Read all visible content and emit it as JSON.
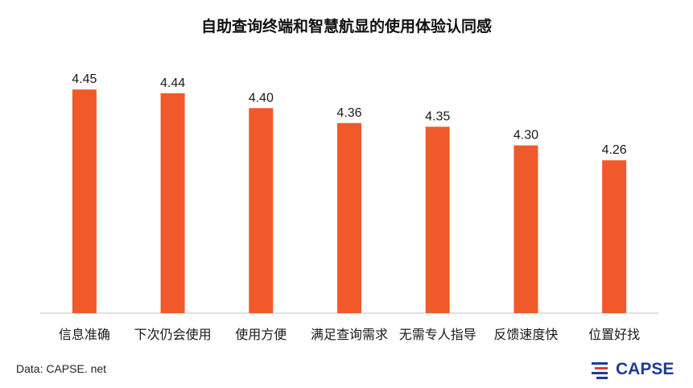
{
  "chart_data": {
    "type": "bar",
    "title": "自助查询终端和智慧航显的使用体验认同感",
    "categories": [
      "信息准确",
      "下次仍会使用",
      "使用方便",
      "满足查询需求",
      "无需专人指导",
      "反馈速度快",
      "位置好找"
    ],
    "values": [
      4.45,
      4.44,
      4.4,
      4.36,
      4.35,
      4.3,
      4.26
    ],
    "value_labels": [
      "4.45",
      "4.44",
      "4.40",
      "4.36",
      "4.35",
      "4.30",
      "4.26"
    ],
    "xlabel": "",
    "ylabel": "",
    "ylim": [
      3.85,
      4.5
    ],
    "bar_color": "#f05a2a",
    "grid": false,
    "legend": "none"
  },
  "footer": {
    "source": "Data: CAPSE. net",
    "logo_text": "CAPSE"
  },
  "colors": {
    "bar": "#f05a2a",
    "axis": "#bfbfbf",
    "logo_blue": "#1f3c8f",
    "logo_red": "#e53935"
  }
}
